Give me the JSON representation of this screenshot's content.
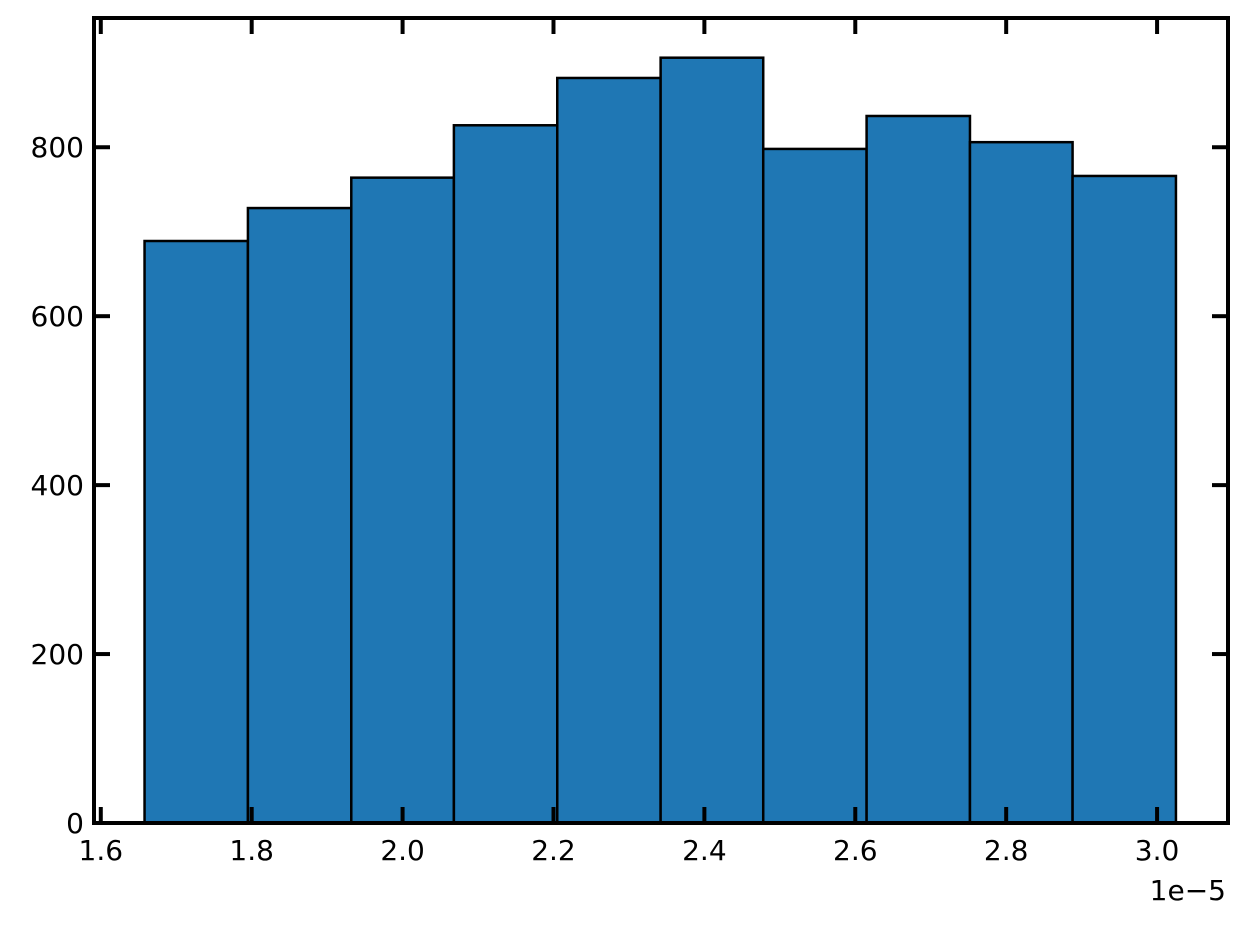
{
  "chart_data": {
    "type": "bar",
    "subtype": "histogram",
    "title": "",
    "xlabel": "",
    "ylabel": "",
    "x_offset_label": "1e−5",
    "bin_edges": [
      1.658,
      1.795,
      1.932,
      2.068,
      2.205,
      2.342,
      2.478,
      2.615,
      2.752,
      2.888,
      3.025
    ],
    "values": [
      689,
      728,
      764,
      826,
      882,
      906,
      798,
      837,
      806,
      766
    ],
    "xlim": [
      1.591,
      3.094
    ],
    "ylim": [
      0,
      953
    ],
    "xticks": [
      "1.6",
      "1.8",
      "2.0",
      "2.2",
      "2.4",
      "2.6",
      "2.8",
      "3.0"
    ],
    "xtick_values": [
      1.6,
      1.8,
      2.0,
      2.2,
      2.4,
      2.6,
      2.8,
      3.0
    ],
    "yticks": [
      "0",
      "200",
      "400",
      "600",
      "800"
    ],
    "ytick_values": [
      0,
      200,
      400,
      600,
      800
    ],
    "grid": false,
    "legend": "none",
    "colors": {
      "bar_fill": "#1f77b4",
      "bar_edge": "#000000"
    }
  }
}
